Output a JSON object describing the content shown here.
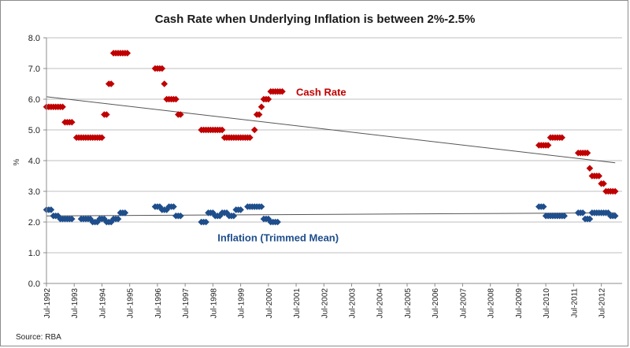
{
  "chart_data": {
    "type": "scatter",
    "title": "Cash Rate when Underlying Inflation is between 2%-2.5%",
    "ylabel": "%",
    "xlabel": "",
    "ylim": [
      0,
      8
    ],
    "xlim": [
      "1992-07",
      "2013-04"
    ],
    "y_ticks": [
      "0.0",
      "1.0",
      "2.0",
      "3.0",
      "4.0",
      "5.0",
      "6.0",
      "7.0",
      "8.0"
    ],
    "x_ticks": [
      "Jul-1992",
      "Jul-1993",
      "Jul-1994",
      "Jul-1995",
      "Jul-1996",
      "Jul-1997",
      "Jul-1998",
      "Jul-1999",
      "Jul-2000",
      "Jul-2001",
      "Jul-2002",
      "Jul-2003",
      "Jul-2004",
      "Jul-2005",
      "Jul-2006",
      "Jul-2007",
      "Jul-2008",
      "Jul-2009",
      "Jul-2010",
      "Jul-2011",
      "Jul-2012"
    ],
    "grid": "horizontal",
    "source": "Source: RBA",
    "series": [
      {
        "name": "Cash Rate",
        "color": "#c00000",
        "marker": "diamond",
        "points": [
          [
            "1992-07",
            5.75
          ],
          [
            "1992-08",
            5.75
          ],
          [
            "1992-09",
            5.75
          ],
          [
            "1992-10",
            5.75
          ],
          [
            "1992-11",
            5.75
          ],
          [
            "1992-12",
            5.75
          ],
          [
            "1993-01",
            5.75
          ],
          [
            "1993-02",
            5.75
          ],
          [
            "1993-03",
            5.25
          ],
          [
            "1993-04",
            5.25
          ],
          [
            "1993-05",
            5.25
          ],
          [
            "1993-06",
            5.25
          ],
          [
            "1993-08",
            4.75
          ],
          [
            "1993-09",
            4.75
          ],
          [
            "1993-10",
            4.75
          ],
          [
            "1993-11",
            4.75
          ],
          [
            "1993-12",
            4.75
          ],
          [
            "1994-01",
            4.75
          ],
          [
            "1994-02",
            4.75
          ],
          [
            "1994-03",
            4.75
          ],
          [
            "1994-04",
            4.75
          ],
          [
            "1994-05",
            4.75
          ],
          [
            "1994-06",
            4.75
          ],
          [
            "1994-07",
            4.75
          ],
          [
            "1994-08",
            5.5
          ],
          [
            "1994-09",
            5.5
          ],
          [
            "1994-10",
            6.5
          ],
          [
            "1994-11",
            6.5
          ],
          [
            "1994-12",
            7.5
          ],
          [
            "1995-01",
            7.5
          ],
          [
            "1995-02",
            7.5
          ],
          [
            "1995-03",
            7.5
          ],
          [
            "1995-04",
            7.5
          ],
          [
            "1995-05",
            7.5
          ],
          [
            "1995-06",
            7.5
          ],
          [
            "1996-06",
            7.0
          ],
          [
            "1996-07",
            7.0
          ],
          [
            "1996-08",
            7.0
          ],
          [
            "1996-09",
            7.0
          ],
          [
            "1996-10",
            6.5
          ],
          [
            "1996-11",
            6.0
          ],
          [
            "1996-12",
            6.0
          ],
          [
            "1997-01",
            6.0
          ],
          [
            "1997-02",
            6.0
          ],
          [
            "1997-03",
            6.0
          ],
          [
            "1997-04",
            5.5
          ],
          [
            "1997-05",
            5.5
          ],
          [
            "1998-02",
            5.0
          ],
          [
            "1998-03",
            5.0
          ],
          [
            "1998-04",
            5.0
          ],
          [
            "1998-05",
            5.0
          ],
          [
            "1998-06",
            5.0
          ],
          [
            "1998-07",
            5.0
          ],
          [
            "1998-08",
            5.0
          ],
          [
            "1998-09",
            5.0
          ],
          [
            "1998-10",
            5.0
          ],
          [
            "1998-11",
            5.0
          ],
          [
            "1998-12",
            4.75
          ],
          [
            "1999-01",
            4.75
          ],
          [
            "1999-02",
            4.75
          ],
          [
            "1999-03",
            4.75
          ],
          [
            "1999-04",
            4.75
          ],
          [
            "1999-05",
            4.75
          ],
          [
            "1999-06",
            4.75
          ],
          [
            "1999-07",
            4.75
          ],
          [
            "1999-08",
            4.75
          ],
          [
            "1999-09",
            4.75
          ],
          [
            "1999-10",
            4.75
          ],
          [
            "1999-11",
            4.75
          ],
          [
            "2000-01",
            5.0
          ],
          [
            "2000-02",
            5.5
          ],
          [
            "2000-03",
            5.5
          ],
          [
            "2000-04",
            5.75
          ],
          [
            "2000-05",
            6.0
          ],
          [
            "2000-06",
            6.0
          ],
          [
            "2000-07",
            6.0
          ],
          [
            "2000-08",
            6.25
          ],
          [
            "2000-09",
            6.25
          ],
          [
            "2000-10",
            6.25
          ],
          [
            "2000-11",
            6.25
          ],
          [
            "2000-12",
            6.25
          ],
          [
            "2001-01",
            6.25
          ],
          [
            "2010-04",
            4.5
          ],
          [
            "2010-05",
            4.5
          ],
          [
            "2010-06",
            4.5
          ],
          [
            "2010-07",
            4.5
          ],
          [
            "2010-08",
            4.5
          ],
          [
            "2010-09",
            4.75
          ],
          [
            "2010-10",
            4.75
          ],
          [
            "2010-11",
            4.75
          ],
          [
            "2010-12",
            4.75
          ],
          [
            "2011-01",
            4.75
          ],
          [
            "2011-02",
            4.75
          ],
          [
            "2011-09",
            4.25
          ],
          [
            "2011-10",
            4.25
          ],
          [
            "2011-11",
            4.25
          ],
          [
            "2011-12",
            4.25
          ],
          [
            "2012-01",
            4.25
          ],
          [
            "2012-02",
            3.75
          ],
          [
            "2012-03",
            3.5
          ],
          [
            "2012-04",
            3.5
          ],
          [
            "2012-05",
            3.5
          ],
          [
            "2012-06",
            3.5
          ],
          [
            "2012-07",
            3.25
          ],
          [
            "2012-08",
            3.25
          ],
          [
            "2012-09",
            3.0
          ],
          [
            "2012-10",
            3.0
          ],
          [
            "2012-11",
            3.0
          ],
          [
            "2012-12",
            3.0
          ],
          [
            "2013-01",
            3.0
          ]
        ]
      },
      {
        "name": "Inflation (Trimmed Mean)",
        "color": "#1f4e8c",
        "marker": "diamond",
        "points": [
          [
            "1992-07",
            2.4
          ],
          [
            "1992-08",
            2.4
          ],
          [
            "1992-09",
            2.4
          ],
          [
            "1992-10",
            2.2
          ],
          [
            "1992-11",
            2.2
          ],
          [
            "1992-12",
            2.2
          ],
          [
            "1993-01",
            2.1
          ],
          [
            "1993-02",
            2.1
          ],
          [
            "1993-03",
            2.1
          ],
          [
            "1993-04",
            2.1
          ],
          [
            "1993-05",
            2.1
          ],
          [
            "1993-06",
            2.1
          ],
          [
            "1993-10",
            2.1
          ],
          [
            "1993-11",
            2.1
          ],
          [
            "1993-12",
            2.1
          ],
          [
            "1994-01",
            2.1
          ],
          [
            "1994-02",
            2.1
          ],
          [
            "1994-03",
            2.0
          ],
          [
            "1994-04",
            2.0
          ],
          [
            "1994-05",
            2.0
          ],
          [
            "1994-06",
            2.1
          ],
          [
            "1994-07",
            2.1
          ],
          [
            "1994-08",
            2.1
          ],
          [
            "1994-09",
            2.0
          ],
          [
            "1994-10",
            2.0
          ],
          [
            "1994-11",
            2.0
          ],
          [
            "1994-12",
            2.1
          ],
          [
            "1995-01",
            2.1
          ],
          [
            "1995-02",
            2.1
          ],
          [
            "1995-03",
            2.3
          ],
          [
            "1995-04",
            2.3
          ],
          [
            "1995-05",
            2.3
          ],
          [
            "1996-06",
            2.5
          ],
          [
            "1996-07",
            2.5
          ],
          [
            "1996-08",
            2.5
          ],
          [
            "1996-09",
            2.4
          ],
          [
            "1996-10",
            2.4
          ],
          [
            "1996-11",
            2.4
          ],
          [
            "1996-12",
            2.5
          ],
          [
            "1997-01",
            2.5
          ],
          [
            "1997-02",
            2.5
          ],
          [
            "1997-03",
            2.2
          ],
          [
            "1997-04",
            2.2
          ],
          [
            "1997-05",
            2.2
          ],
          [
            "1998-02",
            2.0
          ],
          [
            "1998-03",
            2.0
          ],
          [
            "1998-04",
            2.0
          ],
          [
            "1998-05",
            2.3
          ],
          [
            "1998-06",
            2.3
          ],
          [
            "1998-07",
            2.3
          ],
          [
            "1998-08",
            2.2
          ],
          [
            "1998-09",
            2.2
          ],
          [
            "1998-10",
            2.2
          ],
          [
            "1998-11",
            2.3
          ],
          [
            "1998-12",
            2.3
          ],
          [
            "1999-01",
            2.3
          ],
          [
            "1999-02",
            2.2
          ],
          [
            "1999-03",
            2.2
          ],
          [
            "1999-04",
            2.2
          ],
          [
            "1999-05",
            2.4
          ],
          [
            "1999-06",
            2.4
          ],
          [
            "1999-07",
            2.4
          ],
          [
            "1999-10",
            2.5
          ],
          [
            "1999-11",
            2.5
          ],
          [
            "1999-12",
            2.5
          ],
          [
            "2000-01",
            2.5
          ],
          [
            "2000-02",
            2.5
          ],
          [
            "2000-03",
            2.5
          ],
          [
            "2000-04",
            2.5
          ],
          [
            "2000-05",
            2.1
          ],
          [
            "2000-06",
            2.1
          ],
          [
            "2000-07",
            2.1
          ],
          [
            "2000-08",
            2.0
          ],
          [
            "2000-09",
            2.0
          ],
          [
            "2000-10",
            2.0
          ],
          [
            "2000-11",
            2.0
          ],
          [
            "2010-04",
            2.5
          ],
          [
            "2010-05",
            2.5
          ],
          [
            "2010-06",
            2.5
          ],
          [
            "2010-07",
            2.2
          ],
          [
            "2010-08",
            2.2
          ],
          [
            "2010-09",
            2.2
          ],
          [
            "2010-10",
            2.2
          ],
          [
            "2010-11",
            2.2
          ],
          [
            "2010-12",
            2.2
          ],
          [
            "2011-01",
            2.2
          ],
          [
            "2011-02",
            2.2
          ],
          [
            "2011-03",
            2.2
          ],
          [
            "2011-09",
            2.3
          ],
          [
            "2011-10",
            2.3
          ],
          [
            "2011-11",
            2.3
          ],
          [
            "2011-12",
            2.1
          ],
          [
            "2012-01",
            2.1
          ],
          [
            "2012-02",
            2.1
          ],
          [
            "2012-03",
            2.3
          ],
          [
            "2012-04",
            2.3
          ],
          [
            "2012-05",
            2.3
          ],
          [
            "2012-06",
            2.3
          ],
          [
            "2012-07",
            2.3
          ],
          [
            "2012-08",
            2.3
          ],
          [
            "2012-09",
            2.3
          ],
          [
            "2012-10",
            2.3
          ],
          [
            "2012-11",
            2.2
          ],
          [
            "2012-12",
            2.2
          ],
          [
            "2013-01",
            2.2
          ]
        ]
      }
    ],
    "trendlines": [
      {
        "series": "Cash Rate",
        "from": [
          "1992-07",
          6.08
        ],
        "to": [
          "2013-01",
          3.93
        ]
      },
      {
        "series": "Inflation (Trimmed Mean)",
        "from": [
          "1992-07",
          2.2
        ],
        "to": [
          "2013-01",
          2.3
        ]
      }
    ],
    "annotations": [
      {
        "text": "Cash Rate",
        "color": "#c00000",
        "x": "2001-07",
        "y": 6.25
      },
      {
        "text": "Inflation (Trimmed Mean)",
        "color": "#1f4e8c",
        "x": "1998-09",
        "y": 1.5
      }
    ]
  }
}
